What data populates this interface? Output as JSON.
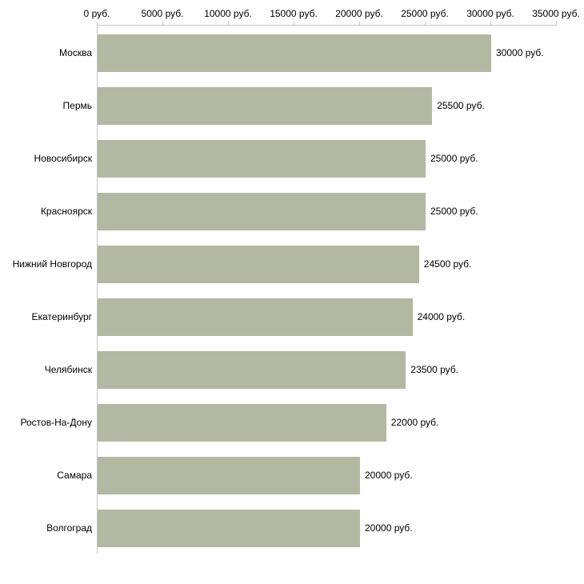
{
  "chart_data": {
    "type": "bar",
    "orientation": "horizontal",
    "title": "",
    "xlabel": "",
    "ylabel": "",
    "categories": [
      "Москва",
      "Пермь",
      "Новосибирск",
      "Красноярск",
      "Нижний Новгород",
      "Екатеринбург",
      "Челябинск",
      "Ростов-На-Дону",
      "Самара",
      "Волгоград"
    ],
    "values": [
      30000,
      25500,
      25000,
      25000,
      24500,
      24000,
      23500,
      22000,
      20000,
      20000
    ],
    "value_labels": [
      "30000 руб.",
      "25500 руб.",
      "25000 руб.",
      "25000 руб.",
      "24500 руб.",
      "24000 руб.",
      "23500 руб.",
      "22000 руб.",
      "20000 руб.",
      "20000 руб."
    ],
    "x_ticks": [
      0,
      5000,
      10000,
      15000,
      20000,
      25000,
      30000,
      35000
    ],
    "x_tick_labels": [
      "0 руб.",
      "5000 руб.",
      "10000 руб.",
      "15000 руб.",
      "20000 руб.",
      "25000 руб.",
      "30000 руб.",
      "35000 руб."
    ],
    "xlim": [
      0,
      35000
    ],
    "legend": null,
    "grid": false,
    "bar_color": "#b2b8a2",
    "axis_color": "#c6c6c6",
    "text_color": "#000000"
  }
}
